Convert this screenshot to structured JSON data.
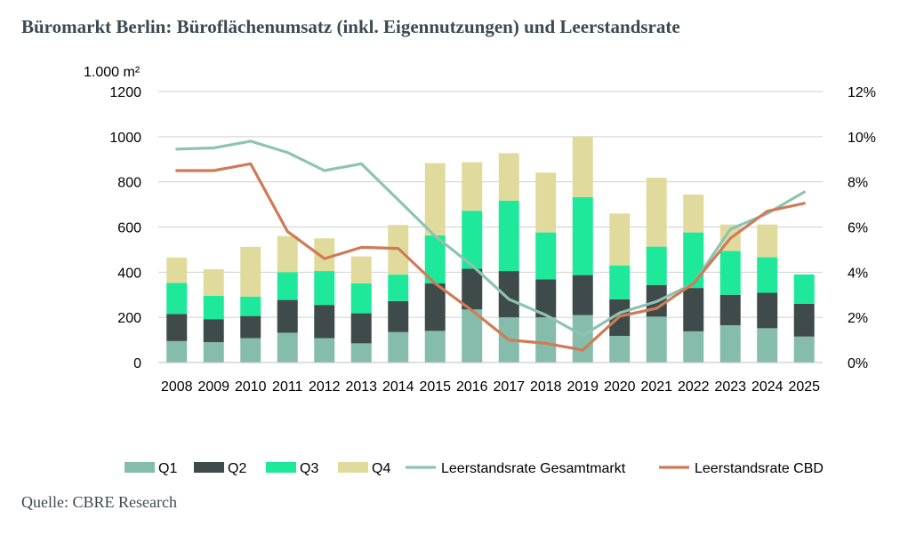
{
  "page": {
    "title": "Büromarkt Berlin: Büroflächenumsatz (inkl. Eigennutzungen) und Leerstandsrate",
    "source": "Quelle: CBRE Research"
  },
  "chart_data": {
    "type": "bar",
    "stacked": true,
    "title": "Büromarkt Berlin: Büroflächenumsatz (inkl. Eigennutzungen) und Leerstandsrate",
    "y_unit_label": "1.000 m²",
    "categories": [
      "2008",
      "2009",
      "2010",
      "2011",
      "2012",
      "2013",
      "2014",
      "2015",
      "2016",
      "2017",
      "2018",
      "2019",
      "2020",
      "2021",
      "2022",
      "2023",
      "2024",
      "2025"
    ],
    "ylim": [
      0,
      1200
    ],
    "yticks": [
      "0",
      "200",
      "400",
      "600",
      "800",
      "1000",
      "1200"
    ],
    "y2lim": [
      0,
      12
    ],
    "y2ticks": [
      "0%",
      "2%",
      "4%",
      "6%",
      "8%",
      "10%",
      "12%"
    ],
    "grid": true,
    "legend_position": "bottom",
    "series": [
      {
        "name": "Q1",
        "kind": "bar",
        "axis": "left",
        "color": "#85bcac",
        "values": [
          95,
          90,
          108,
          132,
          108,
          85,
          135,
          140,
          235,
          200,
          200,
          210,
          118,
          203,
          138,
          165,
          152,
          115
        ]
      },
      {
        "name": "Q2",
        "kind": "bar",
        "axis": "left",
        "color": "#3f4b4b",
        "values": [
          120,
          102,
          98,
          145,
          147,
          133,
          137,
          210,
          180,
          205,
          168,
          177,
          162,
          140,
          192,
          135,
          157,
          145
        ]
      },
      {
        "name": "Q3",
        "kind": "bar",
        "axis": "left",
        "color": "#1ee89a",
        "values": [
          137,
          103,
          86,
          123,
          150,
          133,
          117,
          213,
          257,
          312,
          208,
          345,
          150,
          170,
          246,
          194,
          157,
          130
        ]
      },
      {
        "name": "Q4",
        "kind": "bar",
        "axis": "left",
        "color": "#e0db9d",
        "values": [
          113,
          118,
          220,
          160,
          145,
          119,
          220,
          320,
          215,
          210,
          265,
          268,
          230,
          305,
          168,
          117,
          145,
          0
        ]
      },
      {
        "name": "Leerstandsrate Gesamtmarkt",
        "kind": "line",
        "axis": "right",
        "color": "#8ec3b3",
        "values": [
          9.45,
          9.5,
          9.8,
          9.3,
          8.5,
          8.8,
          7.2,
          5.6,
          4.3,
          2.8,
          2.1,
          1.2,
          2.2,
          2.7,
          3.5,
          5.9,
          6.6,
          7.55
        ]
      },
      {
        "name": "Leerstandsrate CBD",
        "kind": "line",
        "axis": "right",
        "color": "#cf7b57",
        "values": [
          8.5,
          8.5,
          8.8,
          5.8,
          4.6,
          5.1,
          5.05,
          3.5,
          2.3,
          1.0,
          0.85,
          0.55,
          2.05,
          2.4,
          3.5,
          5.5,
          6.7,
          7.05
        ]
      }
    ]
  }
}
